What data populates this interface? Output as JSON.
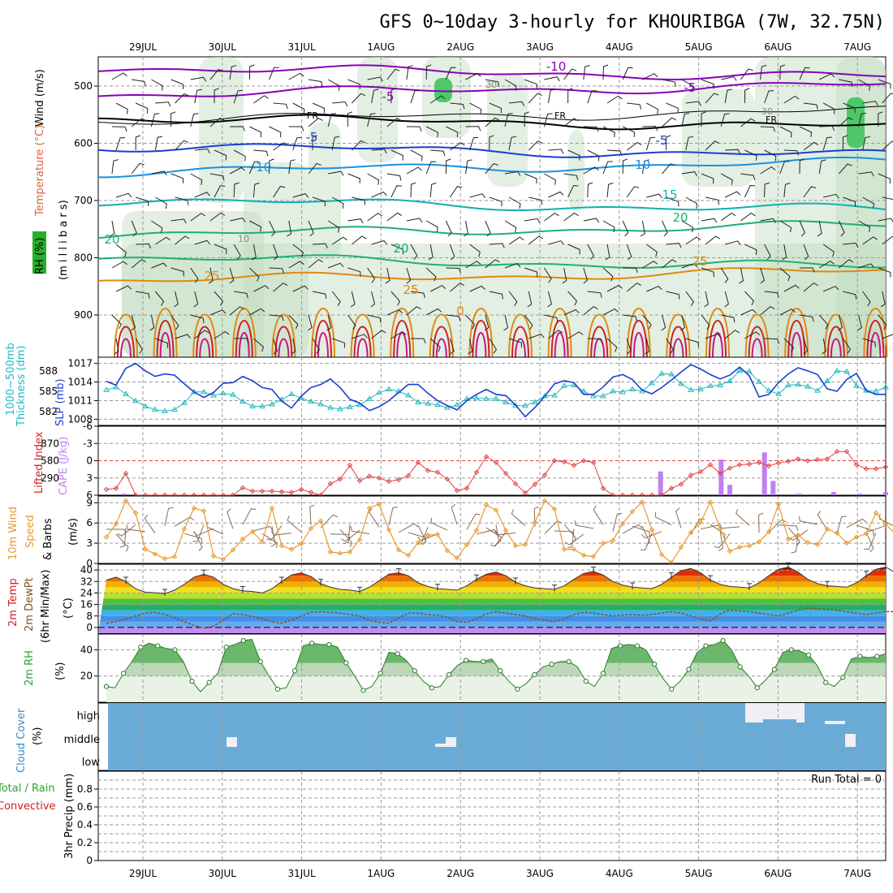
{
  "title": "GFS 0~10day 3-hourly for KHOURIBGA (7W, 32.75N)",
  "date_labels": [
    "29JUL",
    "30JUL",
    "31JUL",
    "1AUG",
    "2AUG",
    "3AUG",
    "4AUG",
    "5AUG",
    "6AUG",
    "7AUG"
  ],
  "colors": {
    "purple": "#8a00b8",
    "blue": "#1a3fd0",
    "cyan": "#1a90e0",
    "teal": "#10b0b0",
    "green": "#20b070",
    "orange": "#e08a10",
    "red": "#d02020",
    "magenta": "#d0108a",
    "thickness": "#20b8c0",
    "slp": "#1a3fd0",
    "lifted": "#e04040",
    "cape": "#c080f0",
    "wind10": "#e89a30",
    "rh2m": "#30a030",
    "cloud": "#6aabd6",
    "cloud_free": "#f1eef4"
  },
  "panels": {
    "upper": {
      "ylabel_units": "(m i l l i b a r s)",
      "ylabel_temp": "Temperature (°C)",
      "ylabel_wind": "Wind (m/s)",
      "ylabel_rh": "RH (%)",
      "yticks": [
        "500",
        "600",
        "700",
        "800",
        "900"
      ],
      "contour_labels": [
        "-10",
        "-5",
        "-5",
        "FR",
        "FR",
        "FR",
        "-5",
        "-5",
        "-10",
        "-10",
        "15",
        "20",
        "20",
        "20",
        "25",
        "25",
        "25",
        "0",
        "10",
        "30",
        "30"
      ]
    },
    "thickness": {
      "label_left": "Thickness (dm)",
      "label_left2": "1000~500mb",
      "label_right": "SLP (mb)",
      "ticks_left": [
        "588",
        "585",
        "582"
      ],
      "ticks_right": [
        "1017",
        "1014",
        "1011",
        "1008"
      ]
    },
    "cape": {
      "label_lifted": "Lifted Index",
      "label_cape": "CAPE (J/kg)",
      "ticks_left": [
        "-6",
        "-3",
        "0",
        "3",
        "6"
      ],
      "ticks_right": [
        "870",
        "580",
        "290"
      ]
    },
    "wind10": {
      "label1": "10m Wind",
      "label2": "Speed",
      "label3": "& Barbs",
      "units": "(m/s)",
      "ticks": [
        "9",
        "6",
        "3",
        "0"
      ]
    },
    "temp2m": {
      "label1": "2m Temp",
      "label2": "2m DewPt",
      "label3": "(6hr Min/Max)",
      "units": "(°C)",
      "ticks": [
        "40",
        "32",
        "24",
        "16",
        "8",
        "0"
      ]
    },
    "rh2m": {
      "label": "2m RH",
      "units": "(%)",
      "ticks": [
        "40",
        "20"
      ]
    },
    "cloud": {
      "label": "Cloud Cover",
      "units": "(%)",
      "levels": [
        "high",
        "middle",
        "low"
      ]
    },
    "precip": {
      "label_total": "Total / Rain",
      "label_conv": "Convective",
      "label_units": "3hr Precip (mm)",
      "run_total": "Run Total = 0",
      "ticks": [
        "0.8",
        "0.6",
        "0.4",
        "0.2",
        "0"
      ]
    }
  },
  "chart_data": [
    {
      "type": "line",
      "panel": "thickness_slp",
      "x_unit": "3-hourly steps",
      "series": [
        {
          "name": "Thickness (dm)",
          "axis": "left",
          "values": [
            585.2,
            585.6,
            584.6,
            583.6,
            582.8,
            582.3,
            582.1,
            582.3,
            583.3,
            584.9,
            584.9,
            584.4,
            584.7,
            584.5,
            583.5,
            582.8,
            582.8,
            583.1,
            583.8,
            584.6,
            584.0,
            583.5,
            583.1,
            582.6,
            582.4,
            582.7,
            583.0,
            583.9,
            584.8,
            585.3,
            585.0,
            584.4,
            583.4,
            583.2,
            583.0,
            582.6,
            583.0,
            583.9,
            584.0,
            583.9,
            583.9,
            583.4,
            582.9,
            582.9,
            583.4,
            584.3,
            584.4,
            585.8,
            585.9,
            585.0,
            584.3,
            584.3,
            585.0,
            584.9,
            585.3,
            585.0,
            586.2,
            587.6,
            587.5,
            586.1,
            585.2,
            585.3,
            585.8,
            585.9,
            586.5,
            588.0,
            587.9,
            586.4,
            585.1,
            584.6,
            585.9,
            586.0,
            585.7,
            585.1,
            586.5,
            588.0,
            587.9,
            585.8,
            585.1,
            585.0,
            585.6
          ]
        },
        {
          "name": "SLP (mb)",
          "axis": "right",
          "values": [
            1014.1,
            1013.5,
            1016.2,
            1017.0,
            1015.8,
            1014.9,
            1015.3,
            1015.1,
            1013.7,
            1012.4,
            1011.5,
            1012.3,
            1013.8,
            1013.9,
            1014.9,
            1014.2,
            1013.1,
            1012.8,
            1010.9,
            1009.8,
            1011.7,
            1013.1,
            1013.6,
            1014.5,
            1013.1,
            1011.2,
            1010.6,
            1009.4,
            1010.0,
            1011.0,
            1012.3,
            1013.6,
            1013.6,
            1012.2,
            1011.0,
            1010.2,
            1009.5,
            1011.0,
            1012.0,
            1012.8,
            1012.0,
            1011.8,
            1010.3,
            1008.4,
            1009.9,
            1011.7,
            1013.7,
            1014.2,
            1013.9,
            1012.0,
            1012.0,
            1013.2,
            1014.8,
            1015.2,
            1014.4,
            1012.7,
            1012.1,
            1013.1,
            1014.3,
            1015.6,
            1016.8,
            1016.1,
            1015.2,
            1014.5,
            1015.1,
            1016.4,
            1015.0,
            1011.6,
            1012.0,
            1013.9,
            1015.3,
            1016.3,
            1015.8,
            1015.2,
            1012.9,
            1012.5,
            1014.4,
            1015.4,
            1012.6,
            1012.0,
            1012.0
          ]
        }
      ],
      "ylim_left": [
        580,
        590
      ],
      "ylim_right": [
        1007,
        1018
      ]
    },
    {
      "type": "line",
      "panel": "lifted_index",
      "x_unit": "3-hourly steps",
      "series": [
        {
          "name": "Lifted Index",
          "values": [
            5.0,
            4.8,
            2.2,
            6.0,
            6.0,
            6.0,
            6.0,
            6.0,
            6.0,
            6.0,
            6.0,
            6.0,
            6.0,
            6.0,
            4.7,
            5.3,
            5.3,
            5.3,
            5.4,
            5.5,
            5.0,
            5.5,
            6.0,
            4.0,
            3.2,
            0.8,
            3.5,
            2.7,
            3.0,
            3.6,
            3.3,
            2.6,
            0.3,
            1.7,
            2.0,
            3.2,
            5.2,
            4.8,
            2.0,
            -0.7,
            0.3,
            2.2,
            4.0,
            5.6,
            4.1,
            2.5,
            0.0,
            0.2,
            0.8,
            0.0,
            0.3,
            4.8,
            6.0,
            6.0,
            6.0,
            6.0,
            6.0,
            6.0,
            4.8,
            4.1,
            2.5,
            1.9,
            0.7,
            2.2,
            1.3,
            0.7,
            0.6,
            0.3,
            0.9,
            0.4,
            0.1,
            -0.3,
            0.0,
            -0.2,
            -0.3,
            -1.6,
            -1.6,
            0.7,
            1.4,
            1.4,
            1.1
          ]
        }
      ],
      "ylim": [
        6,
        -6
      ]
    },
    {
      "type": "bar",
      "panel": "cape",
      "x_unit": "3-hourly steps",
      "series": [
        {
          "name": "CAPE (J/kg)",
          "values": [
            0,
            0,
            20,
            0,
            0,
            0,
            0,
            0,
            0,
            0,
            0,
            0,
            0,
            0,
            0,
            0,
            0,
            0,
            0,
            0,
            0,
            0,
            0,
            0,
            0,
            0,
            0,
            0,
            0,
            0,
            0,
            0,
            0,
            0,
            0,
            0,
            0,
            0,
            0,
            0,
            0,
            0,
            0,
            0,
            0,
            0,
            0,
            0,
            0,
            0,
            0,
            0,
            0,
            0,
            0,
            0,
            0,
            0,
            0,
            0,
            0,
            0,
            0,
            0,
            300,
            0,
            0,
            0,
            0,
            0,
            0,
            450,
            130,
            0,
            0,
            0,
            540,
            180,
            0,
            0,
            20,
            0,
            0,
            0,
            40,
            0,
            0,
            20,
            0,
            0,
            40
          ]
        }
      ],
      "ylim": [
        0,
        870
      ]
    },
    {
      "type": "line",
      "panel": "wind10m",
      "x_unit": "3-hourly steps",
      "series": [
        {
          "name": "10m Wind Speed (m/s)",
          "values": [
            3.9,
            5.9,
            9.3,
            7.5,
            2.1,
            1.4,
            0.7,
            1.0,
            5.1,
            8.2,
            7.8,
            1.1,
            0.6,
            2.0,
            3.6,
            4.7,
            3.2,
            8.2,
            2.6,
            2.1,
            2.9,
            5.2,
            6.3,
            1.7,
            1.5,
            1.7,
            3.5,
            8.2,
            8.8,
            5.0,
            2.0,
            1.2,
            3.1,
            4.2,
            4.3,
            1.9,
            0.8,
            2.8,
            4.9,
            8.7,
            7.9,
            4.9,
            2.6,
            2.8,
            6.1,
            9.3,
            8.1,
            2.1,
            2.1,
            1.2,
            1.0,
            3.0,
            3.4,
            5.9,
            7.7,
            9.1,
            5.0,
            1.3,
            0.1,
            2.4,
            4.6,
            6.1,
            9.1,
            5.1,
            1.8,
            2.4,
            2.6,
            3.2,
            4.7,
            8.8,
            3.6,
            4.2,
            3.1,
            2.8,
            5.1,
            4.5,
            3.0,
            3.9,
            4.4,
            7.5,
            5.8,
            4.4,
            2.6
          ]
        }
      ],
      "ylim": [
        0,
        10
      ]
    },
    {
      "type": "area",
      "panel": "temp2m",
      "x_unit": "3-hourly steps",
      "series": [
        {
          "name": "2m Temp (°C)",
          "values": [
            33.0,
            35.0,
            32.0,
            27.0,
            24.5,
            24.2,
            23.5,
            26.0,
            30.0,
            35.0,
            37.0,
            35.0,
            30.0,
            27.0,
            25.5,
            25.0,
            24.0,
            27.0,
            32.0,
            36.5,
            38.0,
            35.5,
            30.5,
            28.0,
            26.5,
            26.0,
            25.0,
            28.0,
            32.5,
            37.0,
            38.0,
            36.0,
            31.0,
            28.5,
            27.0,
            26.5,
            26.0,
            29.0,
            33.5,
            37.0,
            38.5,
            36.0,
            31.5,
            29.0,
            27.5,
            27.0,
            26.5,
            29.0,
            33.5,
            37.5,
            39.0,
            36.5,
            32.0,
            29.5,
            28.0,
            27.5,
            27.0,
            30.0,
            35.0,
            39.5,
            41.0,
            38.0,
            33.0,
            30.0,
            28.5,
            28.0,
            27.5,
            31.0,
            36.0,
            40.5,
            42.0,
            38.5,
            33.5,
            30.5,
            29.0,
            28.5,
            28.0,
            31.0,
            36.0,
            40.5,
            42.0,
            38.0,
            33.0,
            29.5,
            28.0,
            27.5
          ]
        },
        {
          "name": "2m DewPt (°C)",
          "values": [
            3.0,
            4.0,
            6.0,
            8.0,
            10.0,
            10.5,
            9.0,
            7.0,
            4.0,
            1.5,
            -0.5,
            1.0,
            5.0,
            9.5,
            9.0,
            7.5,
            6.0,
            4.0,
            3.0,
            5.0,
            8.0,
            10.5,
            11.0,
            10.5,
            10.0,
            9.0,
            8.0,
            5.0,
            3.5,
            3.0,
            6.5,
            10.0,
            10.0,
            9.0,
            8.5,
            7.0,
            4.0,
            3.5,
            6.0,
            9.5,
            11.0,
            10.0,
            9.0,
            8.0,
            6.0,
            5.0,
            4.0,
            6.0,
            9.0,
            10.5,
            10.0,
            9.0,
            8.0,
            8.5,
            9.0,
            8.5,
            9.0,
            10.0,
            11.0,
            10.0,
            8.0,
            6.0,
            4.5,
            9.5,
            12.0,
            11.5,
            11.0,
            10.0,
            9.0,
            8.0,
            10.0,
            12.0,
            13.5,
            13.0,
            12.5,
            12.0,
            11.0,
            10.0,
            9.0,
            10.0,
            11.0,
            11.0,
            10.5,
            10.0,
            9.5
          ]
        }
      ],
      "ylim": [
        -4,
        44
      ]
    },
    {
      "type": "area",
      "panel": "rh2m",
      "x_unit": "3-hourly steps",
      "series": [
        {
          "name": "2m RH (%)",
          "values": [
            12,
            11,
            22,
            31,
            42,
            45,
            43,
            41,
            40,
            31,
            16,
            8,
            15,
            22,
            42,
            44,
            47,
            48,
            31,
            20,
            10,
            11,
            24,
            43,
            45,
            44,
            44,
            42,
            30,
            20,
            9,
            12,
            22,
            38,
            37,
            32,
            24,
            16,
            11,
            12,
            21,
            28,
            32,
            31,
            31,
            33,
            24,
            16,
            10,
            14,
            21,
            27,
            29,
            31,
            31,
            27,
            16,
            12,
            22,
            41,
            43,
            44,
            43,
            40,
            29,
            18,
            10,
            16,
            25,
            38,
            43,
            44,
            47,
            40,
            27,
            20,
            11,
            17,
            25,
            38,
            40,
            39,
            36,
            28,
            15,
            12,
            19,
            33,
            35,
            34,
            35,
            37
          ]
        }
      ],
      "ylim": [
        0,
        52
      ]
    },
    {
      "type": "heatmap",
      "panel": "cloud_cover",
      "levels": [
        "high",
        "middle",
        "low"
      ],
      "note": "Cloud cover is high/full across almost the whole period; small clear gaps near 30JUL (middle), 2AUG (middle/low), 5-6AUG (high) and 7AUG (middle)."
    },
    {
      "type": "bar",
      "panel": "precip_3hr",
      "series": [
        {
          "name": "Total / Rain",
          "values": []
        },
        {
          "name": "Convective",
          "values": []
        }
      ],
      "ylim": [
        0,
        1.0
      ]
    }
  ]
}
